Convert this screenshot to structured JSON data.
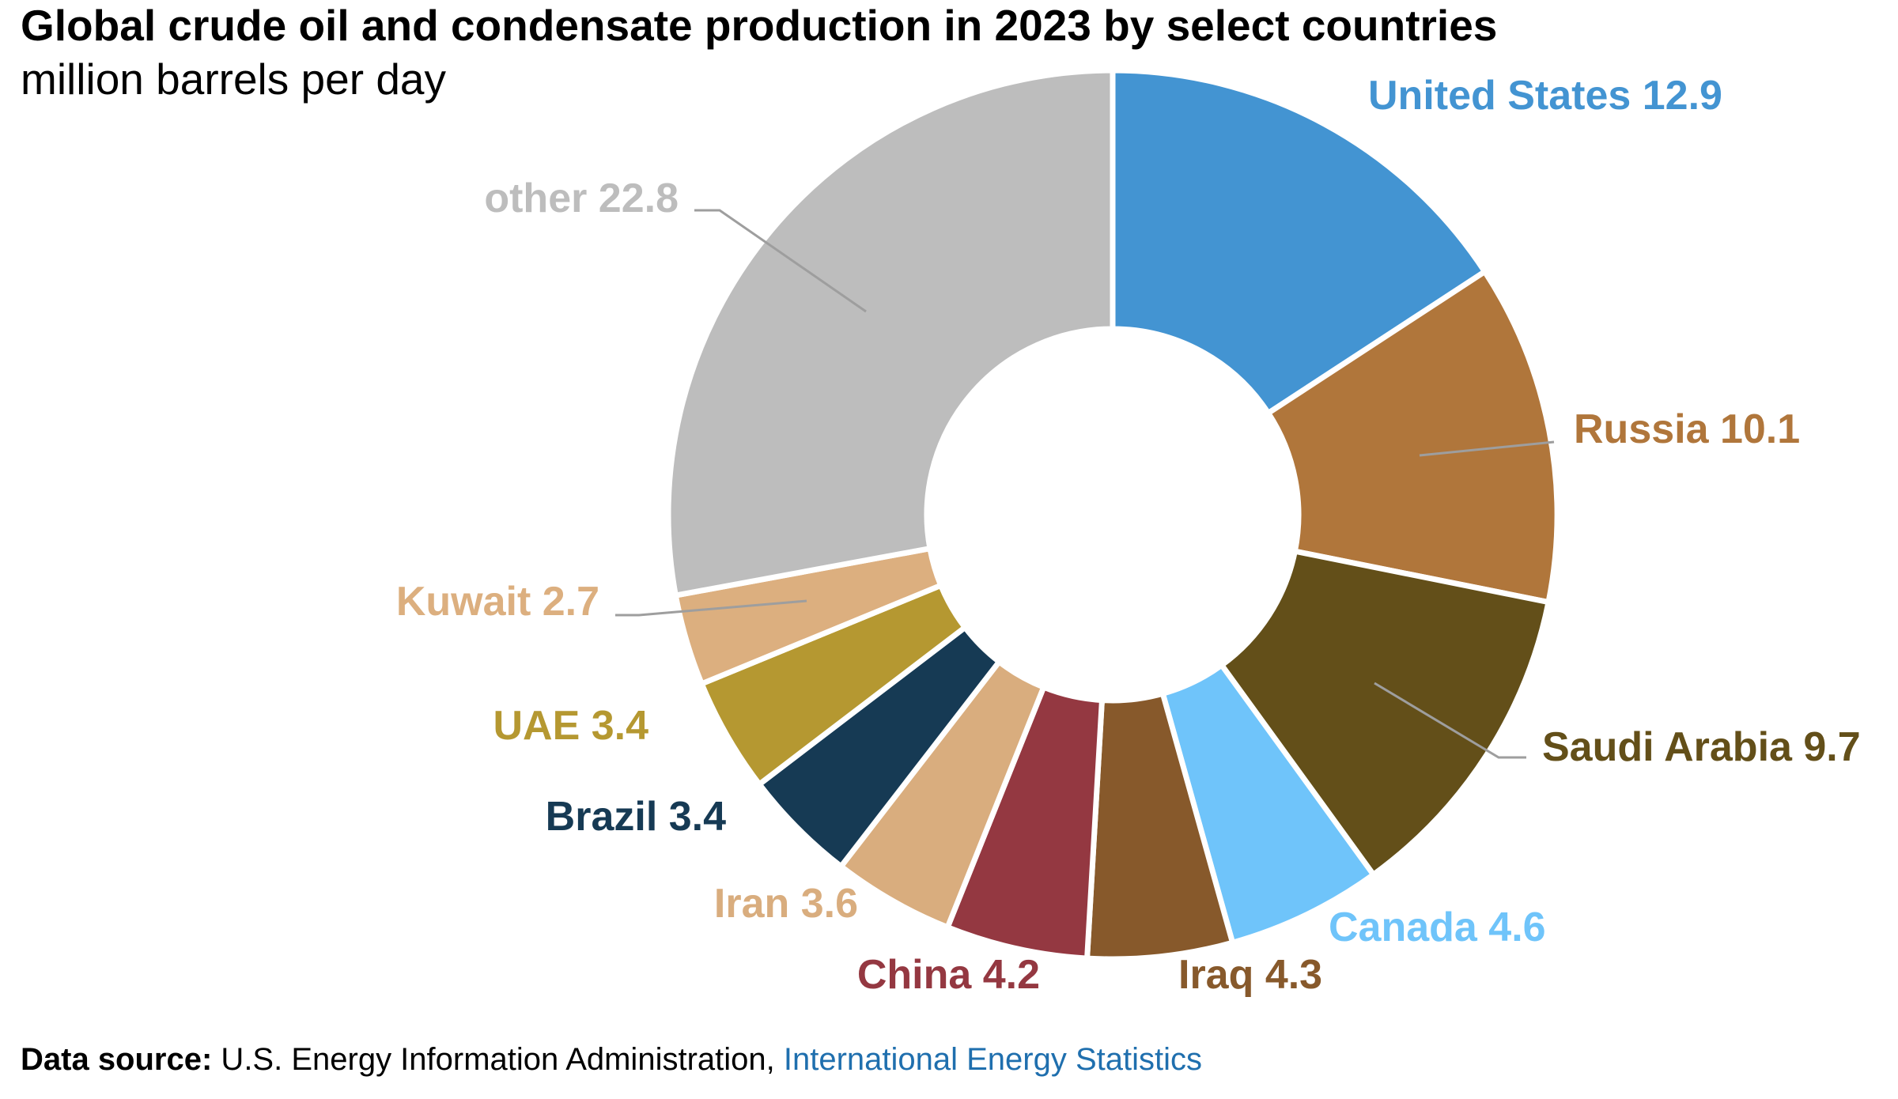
{
  "title": "Global crude oil and condensate production in 2023 by select countries",
  "subtitle": "million barrels per day",
  "footer": {
    "source_label": "Data source:",
    "source_text": " U.S. Energy Information Administration, ",
    "source_link": "International Energy Statistics"
  },
  "chart_data": {
    "type": "pie",
    "variant": "donut",
    "title": "Global crude oil and condensate production in 2023 by select countries",
    "subtitle": "million barrels per day",
    "unit": "million barrels per day",
    "slices": [
      {
        "label": "United States",
        "value": 12.9,
        "color": "#4394d2"
      },
      {
        "label": "Russia",
        "value": 10.1,
        "color": "#b0763b"
      },
      {
        "label": "Saudi Arabia",
        "value": 9.7,
        "color": "#634f19"
      },
      {
        "label": "Canada",
        "value": 4.6,
        "color": "#6fc4fa"
      },
      {
        "label": "Iraq",
        "value": 4.3,
        "color": "#87592b"
      },
      {
        "label": "China",
        "value": 4.2,
        "color": "#943841"
      },
      {
        "label": "Iran",
        "value": 3.6,
        "color": "#d9ad7e"
      },
      {
        "label": "Brazil",
        "value": 3.4,
        "color": "#163a54"
      },
      {
        "label": "UAE",
        "value": 3.4,
        "color": "#b59831"
      },
      {
        "label": "Kuwait",
        "value": 2.7,
        "color": "#dcaf7f"
      },
      {
        "label": "other",
        "value": 22.8,
        "color": "#bdbdbd"
      }
    ]
  }
}
